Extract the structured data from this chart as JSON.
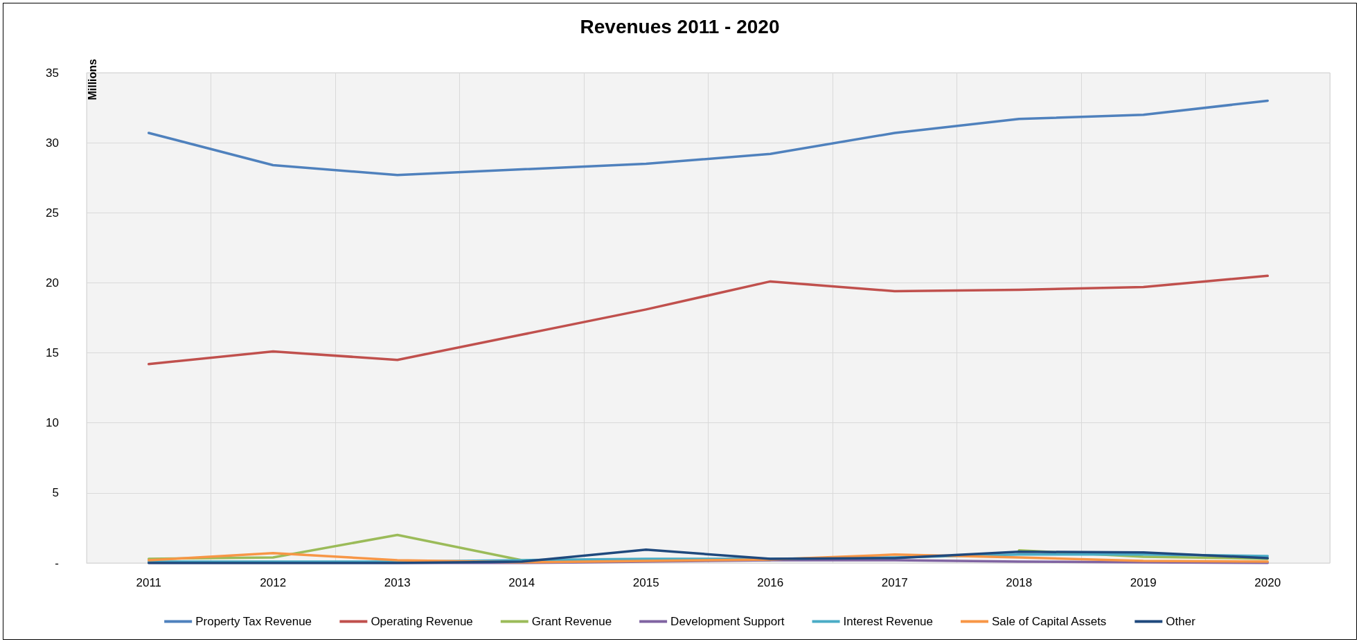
{
  "chart_data": {
    "type": "line",
    "title": "Revenues 2011 - 2020",
    "ylabel": "Millions",
    "categories": [
      "2011",
      "2012",
      "2013",
      "2014",
      "2015",
      "2016",
      "2017",
      "2018",
      "2019",
      "2020"
    ],
    "ylim": [
      0,
      35
    ],
    "yticks": [
      {
        "value": 0,
        "label": "-"
      },
      5,
      10,
      15,
      20,
      25,
      30,
      35
    ],
    "grid": true,
    "legend": "bottom",
    "marker": "none",
    "line_style": "solid",
    "series": [
      {
        "name": "Property Tax Revenue",
        "color": "#4f81bd",
        "values": [
          30.7,
          28.4,
          27.7,
          28.1,
          28.5,
          29.2,
          30.7,
          31.7,
          32.0,
          33.0
        ]
      },
      {
        "name": "Operating Revenue",
        "color": "#c0504d",
        "values": [
          14.2,
          15.1,
          14.5,
          16.3,
          18.1,
          20.1,
          19.4,
          19.5,
          19.7,
          20.5
        ]
      },
      {
        "name": "Grant Revenue",
        "color": "#9bbb59",
        "values": [
          0.3,
          0.4,
          2.0,
          0.2,
          0.25,
          0.2,
          null,
          0.9,
          0.45,
          0.3
        ]
      },
      {
        "name": "Development Support",
        "color": "#8064a2",
        "values": [
          0,
          0,
          0,
          0,
          0.1,
          0.2,
          0.2,
          0.1,
          0.05,
          0
        ]
      },
      {
        "name": "Interest Revenue",
        "color": "#4bacc6",
        "values": [
          0.1,
          0.1,
          0.1,
          0.2,
          0.3,
          0.3,
          0.4,
          0.6,
          0.6,
          0.5
        ]
      },
      {
        "name": "Sale of Capital Assets",
        "color": "#f79646",
        "values": [
          0.2,
          0.7,
          0.2,
          0.05,
          0.15,
          0.25,
          0.6,
          0.4,
          0.15,
          0.1
        ]
      },
      {
        "name": "Other",
        "color": "#1f497d",
        "values": [
          0,
          0,
          0,
          0.1,
          0.95,
          0.3,
          0.35,
          0.8,
          0.75,
          0.35
        ]
      }
    ]
  }
}
